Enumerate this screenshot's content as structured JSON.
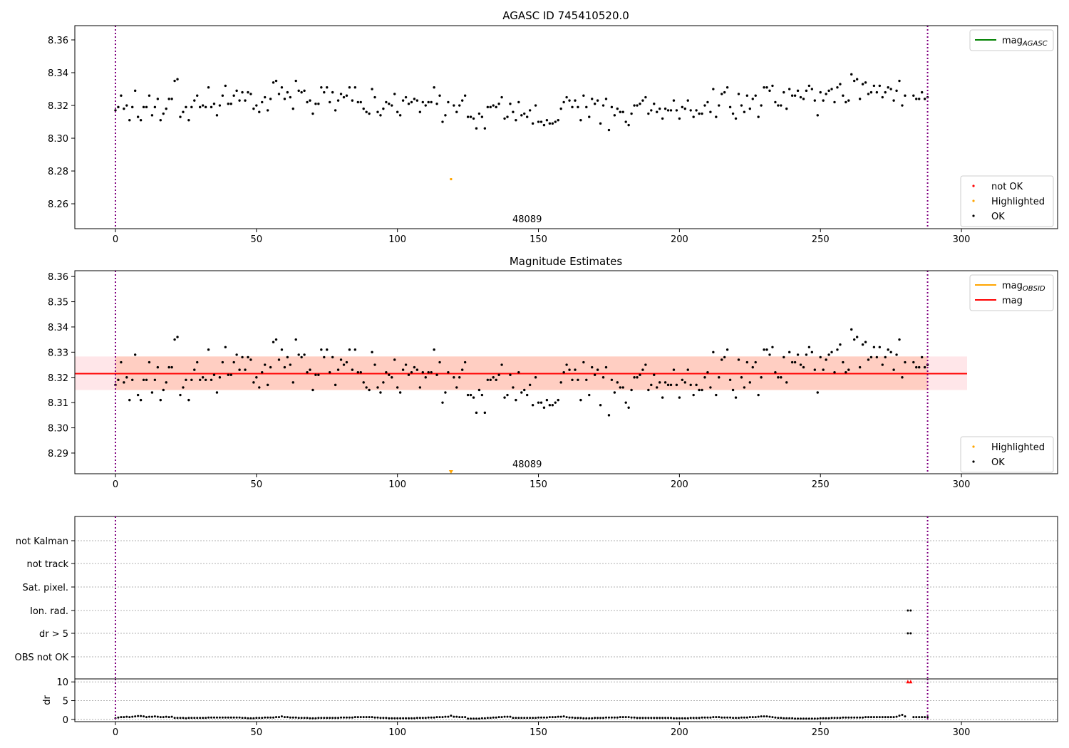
{
  "chart_data": {
    "type": "scatter",
    "x_range": [
      -14.4,
      334.1
    ],
    "xticks": [
      0,
      50,
      100,
      150,
      200,
      250,
      300
    ],
    "obs_boundaries": [
      0,
      288
    ],
    "obsid_label": "48089",
    "obsid_label_x": 146,
    "panels": [
      {
        "title": "AGASC ID 745410520.0",
        "ylim": [
          8.2448,
          8.3687
        ],
        "yticks": [
          "8.26",
          "8.28",
          "8.30",
          "8.32",
          "8.34",
          "8.36"
        ],
        "legend_lines": [
          {
            "label": "mag",
            "sub": "AGASC",
            "color": "#008000"
          }
        ],
        "legend_points": [
          {
            "label": "not OK",
            "color": "#ff0000"
          },
          {
            "label": "Highlighted",
            "color": "#ffa500"
          },
          {
            "label": "OK",
            "color": "#000000"
          }
        ]
      },
      {
        "title": "Magnitude Estimates",
        "ylim": [
          8.2818,
          8.3623
        ],
        "yticks": [
          "8.29",
          "8.30",
          "8.31",
          "8.32",
          "8.33",
          "8.34",
          "8.35",
          "8.36"
        ],
        "mag": 8.3215,
        "mag_band": [
          8.315,
          8.3283
        ],
        "band_x_range": [
          -14.4,
          302
        ],
        "legend_lines": [
          {
            "label": "mag",
            "sub": "OBSID",
            "color": "#ffa500"
          },
          {
            "label": "mag",
            "sub": "",
            "color": "#ff0000"
          }
        ],
        "legend_points": [
          {
            "label": "Highlighted",
            "color": "#ffa500"
          },
          {
            "label": "OK",
            "color": "#000000"
          }
        ]
      }
    ],
    "highlighted": [
      {
        "x": 119,
        "y": 8.275
      }
    ],
    "mag_values": [
      8.317,
      8.319,
      8.326,
      8.318,
      8.32,
      8.311,
      8.319,
      8.329,
      8.313,
      8.311,
      8.319,
      8.319,
      8.326,
      8.314,
      8.319,
      8.324,
      8.311,
      8.315,
      8.318,
      8.324,
      8.324,
      8.335,
      8.336,
      8.313,
      8.316,
      8.319,
      8.311,
      8.319,
      8.323,
      8.326,
      8.319,
      8.32,
      8.319,
      8.331,
      8.319,
      8.321,
      8.314,
      8.32,
      8.326,
      8.332,
      8.321,
      8.321,
      8.326,
      8.329,
      8.323,
      8.328,
      8.323,
      8.328,
      8.327,
      8.318,
      8.32,
      8.316,
      8.322,
      8.325,
      8.317,
      8.324,
      8.334,
      8.335,
      8.327,
      8.331,
      8.324,
      8.328,
      8.325,
      8.318,
      8.335,
      8.329,
      8.328,
      8.329,
      8.322,
      8.323,
      8.315,
      8.321,
      8.321,
      8.331,
      8.328,
      8.331,
      8.322,
      8.328,
      8.317,
      8.323,
      8.327,
      8.325,
      8.326,
      8.331,
      8.323,
      8.331,
      8.322,
      8.322,
      8.318,
      8.316,
      8.315,
      8.33,
      8.325,
      8.316,
      8.314,
      8.318,
      8.322,
      8.321,
      8.32,
      8.327,
      8.316,
      8.314,
      8.323,
      8.325,
      8.321,
      8.322,
      8.324,
      8.323,
      8.316,
      8.322,
      8.32,
      8.322,
      8.322,
      8.331,
      8.321,
      8.326,
      8.31,
      8.314,
      8.322,
      null,
      8.32,
      8.316,
      8.32,
      8.323,
      8.326,
      8.313,
      8.313,
      8.312,
      8.306,
      8.315,
      8.313,
      8.306,
      8.319,
      8.319,
      8.32,
      8.319,
      8.321,
      8.325,
      8.312,
      8.313,
      8.321,
      8.316,
      8.311,
      8.322,
      8.314,
      8.315,
      8.313,
      8.317,
      8.309,
      8.32,
      8.31,
      8.31,
      8.308,
      8.311,
      8.309,
      8.309,
      8.31,
      8.311,
      8.318,
      8.322,
      8.325,
      8.323,
      8.319,
      8.323,
      8.319,
      8.311,
      8.326,
      8.319,
      8.313,
      8.324,
      8.321,
      8.323,
      8.309,
      8.32,
      8.324,
      8.305,
      8.319,
      8.314,
      8.318,
      8.316,
      8.316,
      8.31,
      8.308,
      8.315,
      8.32,
      8.32,
      8.321,
      8.323,
      8.325,
      8.315,
      8.317,
      8.321,
      8.316,
      8.318,
      8.312,
      8.318,
      8.317,
      8.317,
      8.323,
      8.317,
      8.312,
      8.319,
      8.318,
      8.323,
      8.317,
      8.313,
      8.317,
      8.315,
      8.315,
      8.32,
      8.322,
      8.316,
      8.33,
      8.313,
      8.32,
      8.327,
      8.328,
      8.331,
      8.319,
      8.315,
      8.312,
      8.327,
      8.32,
      8.316,
      8.326,
      8.318,
      8.324,
      8.326,
      8.313,
      8.32,
      8.331,
      8.331,
      8.329,
      8.332,
      8.322,
      8.32,
      8.32,
      8.328,
      8.318,
      8.33,
      8.326,
      8.326,
      8.329,
      8.325,
      8.324,
      8.329,
      8.332,
      8.33,
      8.323,
      8.314,
      8.328,
      8.323,
      8.327,
      8.329,
      8.33,
      8.322,
      8.331,
      8.333,
      8.326,
      8.322,
      8.323,
      8.339,
      8.335,
      8.336,
      8.324,
      8.333,
      8.334,
      8.327,
      8.328,
      8.332,
      8.328,
      8.332,
      8.325,
      8.328,
      8.331,
      8.33,
      8.323,
      8.329,
      8.335,
      8.32,
      8.326,
      null,
      null,
      8.326,
      8.324,
      8.324,
      8.328,
      8.324,
      8.325
    ],
    "flags": {
      "categories": [
        "not Kalman",
        "not track",
        "Sat. pixel.",
        "Ion. rad.",
        "dr > 5",
        "OBS not OK"
      ],
      "points": [
        {
          "category": "Ion. rad.",
          "x": [
            281,
            282
          ]
        },
        {
          "category": "dr > 5",
          "x": [
            281,
            282
          ]
        }
      ]
    },
    "dr": {
      "ylabel": "dr",
      "ylim": [
        -0.6,
        10.8
      ],
      "yticks": [
        "0",
        "5",
        "10"
      ],
      "over_limit_x": [
        281,
        282
      ],
      "values": [
        0.3,
        0.5,
        0.6,
        0.6,
        0.7,
        0.6,
        0.7,
        0.8,
        0.9,
        0.9,
        0.8,
        0.6,
        0.7,
        0.7,
        0.8,
        0.7,
        0.6,
        0.6,
        0.7,
        0.6,
        0.7,
        0.4,
        0.4,
        0.4,
        0.4,
        0.3,
        0.4,
        0.4,
        0.4,
        0.4,
        0.4,
        0.4,
        0.4,
        0.5,
        0.5,
        0.5,
        0.5,
        0.5,
        0.5,
        0.5,
        0.5,
        0.5,
        0.5,
        0.5,
        0.5,
        0.4,
        0.4,
        0.3,
        0.3,
        0.3,
        0.4,
        0.4,
        0.4,
        0.5,
        0.5,
        0.5,
        0.5,
        0.6,
        0.6,
        0.8,
        0.6,
        0.6,
        0.5,
        0.5,
        0.5,
        0.4,
        0.4,
        0.4,
        0.4,
        0.3,
        0.3,
        0.3,
        0.4,
        0.4,
        0.4,
        0.4,
        0.4,
        0.4,
        0.4,
        0.4,
        0.5,
        0.5,
        0.5,
        0.5,
        0.5,
        0.6,
        0.6,
        0.6,
        0.6,
        0.6,
        0.6,
        0.6,
        0.5,
        0.5,
        0.4,
        0.4,
        0.4,
        0.3,
        0.3,
        0.3,
        0.3,
        0.3,
        0.3,
        0.3,
        0.3,
        0.3,
        0.3,
        0.4,
        0.4,
        0.4,
        0.4,
        0.5,
        0.5,
        0.5,
        0.6,
        0.6,
        0.6,
        0.7,
        0.7,
        1.0,
        0.7,
        0.7,
        0.6,
        0.6,
        0.6,
        0.2,
        0.2,
        0.2,
        0.2,
        0.2,
        0.3,
        0.3,
        0.4,
        0.4,
        0.5,
        0.5,
        0.6,
        0.6,
        0.7,
        0.7,
        0.7,
        0.4,
        0.4,
        0.4,
        0.4,
        0.4,
        0.4,
        0.4,
        0.4,
        0.4,
        0.5,
        0.5,
        0.5,
        0.5,
        0.6,
        0.6,
        0.6,
        0.7,
        0.7,
        0.8,
        0.6,
        0.5,
        0.5,
        0.4,
        0.4,
        0.4,
        0.3,
        0.3,
        0.3,
        0.3,
        0.4,
        0.4,
        0.4,
        0.4,
        0.5,
        0.5,
        0.5,
        0.5,
        0.5,
        0.6,
        0.6,
        0.6,
        0.6,
        0.5,
        0.5,
        0.4,
        0.4,
        0.4,
        0.4,
        0.4,
        0.4,
        0.4,
        0.4,
        0.4,
        0.4,
        0.4,
        0.4,
        0.4,
        0.3,
        0.3,
        0.3,
        0.3,
        0.3,
        0.3,
        0.4,
        0.4,
        0.4,
        0.4,
        0.5,
        0.5,
        0.5,
        0.5,
        0.6,
        0.6,
        0.6,
        0.5,
        0.5,
        0.5,
        0.5,
        0.4,
        0.4,
        0.4,
        0.5,
        0.5,
        0.5,
        0.6,
        0.6,
        0.6,
        0.7,
        0.8,
        0.8,
        0.8,
        0.7,
        0.6,
        0.5,
        0.4,
        0.4,
        0.3,
        0.3,
        0.3,
        0.3,
        0.2,
        0.2,
        0.2,
        0.2,
        0.2,
        0.2,
        0.2,
        0.2,
        0.2,
        0.3,
        0.3,
        0.3,
        0.3,
        0.4,
        0.4,
        0.4,
        0.4,
        0.5,
        0.5,
        0.5,
        0.5,
        0.5,
        0.5,
        0.5,
        0.5,
        0.6,
        0.6,
        0.6,
        0.6,
        0.6,
        0.6,
        0.6,
        0.6,
        0.6,
        0.6,
        0.6,
        0.7,
        1.0,
        1.2,
        0.8,
        null,
        null,
        0.6,
        0.6,
        0.6,
        0.6,
        0.6,
        0.6
      ]
    }
  }
}
